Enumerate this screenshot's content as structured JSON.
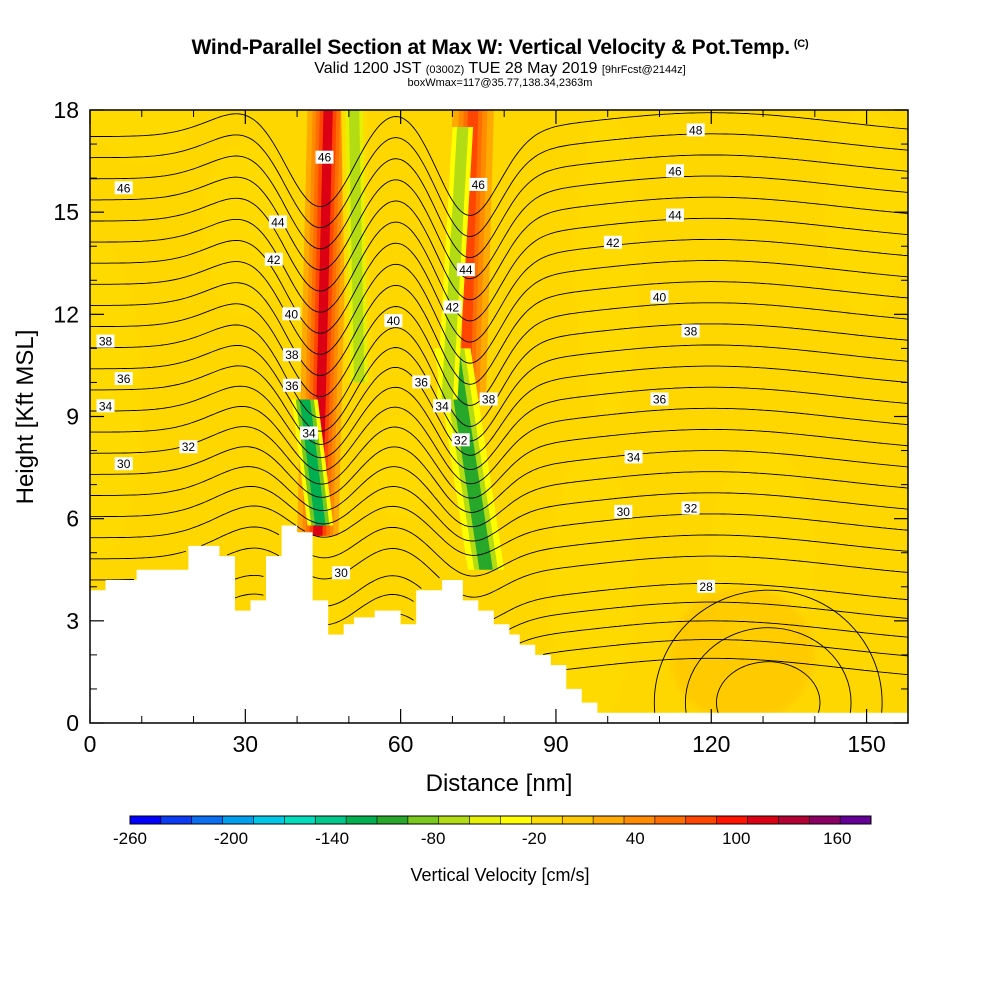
{
  "chart_data": {
    "type": "heatmap",
    "title": "Wind-Parallel Section at Max W: Vertical Velocity & Pot.Temp.",
    "title_mark": "(C)",
    "subtitle_main_a": "Valid 1200 JST",
    "subtitle_small_a": "(0300Z)",
    "subtitle_main_b": "TUE 28 May 2019",
    "subtitle_small_b": "[9hrFcst@2144z]",
    "subtitle2": "boxWmax=117@35.77,138.34,2363m",
    "xlabel": "Distance [nm]",
    "ylabel": "Height [Kft MSL]",
    "xlim": [
      0,
      158
    ],
    "ylim": [
      0,
      18
    ],
    "x_ticks": [
      0,
      30,
      60,
      90,
      120,
      150
    ],
    "y_ticks": [
      0,
      3,
      6,
      9,
      12,
      15,
      18
    ],
    "colorbar": {
      "title": "Vertical Velocity [cm/s]",
      "min": -260,
      "max": 180,
      "step": 20,
      "tick_labels": [
        -260,
        -200,
        -140,
        -80,
        -20,
        40,
        100,
        160
      ],
      "colors": [
        "#0000ff",
        "#0a3cf5",
        "#0a6ef0",
        "#00a0f0",
        "#00c8e6",
        "#00dcbe",
        "#00c88c",
        "#00b050",
        "#28a82a",
        "#78c81e",
        "#b4dc14",
        "#e6f000",
        "#ffff00",
        "#ffdc00",
        "#ffc800",
        "#ffaa00",
        "#ff8c00",
        "#ff6e00",
        "#ff4600",
        "#ff1400",
        "#dc0014",
        "#b40032",
        "#8c0064",
        "#640096"
      ]
    },
    "updraft_cores": [
      {
        "x": 47,
        "base_kft": 5.5,
        "top_kft": 18,
        "max_w": 120
      },
      {
        "x": 74,
        "base_kft": 4.5,
        "top_kft": 18,
        "max_w": 100
      }
    ],
    "downdraft_bands": [
      {
        "x": 50,
        "base_kft": 5.5,
        "top_kft": 18,
        "min_w": -60
      },
      {
        "x": 75,
        "base_kft": 4.5,
        "top_kft": 11,
        "min_w": -100
      }
    ],
    "terrain": [
      [
        0,
        3.9
      ],
      [
        3,
        4.2
      ],
      [
        9,
        4.5
      ],
      [
        19,
        5.2
      ],
      [
        25,
        4.9
      ],
      [
        28,
        3.3
      ],
      [
        31,
        3.6
      ],
      [
        34,
        4.9
      ],
      [
        37,
        5.8
      ],
      [
        40,
        5.6
      ],
      [
        43,
        3.6
      ],
      [
        46,
        2.6
      ],
      [
        49,
        2.9
      ],
      [
        51,
        3.1
      ],
      [
        55,
        3.3
      ],
      [
        60,
        2.9
      ],
      [
        63,
        3.9
      ],
      [
        68,
        4.2
      ],
      [
        72,
        3.6
      ],
      [
        75,
        3.3
      ],
      [
        78,
        2.9
      ],
      [
        81,
        2.6
      ],
      [
        83,
        2.3
      ],
      [
        86,
        2.0
      ],
      [
        89,
        1.7
      ],
      [
        92,
        1.0
      ],
      [
        95,
        0.6
      ],
      [
        98,
        0.3
      ],
      [
        158,
        0.3
      ]
    ],
    "contour_labels": [
      {
        "text": "48",
        "x": 117,
        "y": 17.4
      },
      {
        "text": "46",
        "x": 6.5,
        "y": 15.7
      },
      {
        "text": "46",
        "x": 45.3,
        "y": 16.6
      },
      {
        "text": "46",
        "x": 75,
        "y": 15.8
      },
      {
        "text": "46",
        "x": 113,
        "y": 16.2
      },
      {
        "text": "44",
        "x": 36.3,
        "y": 14.7
      },
      {
        "text": "44",
        "x": 72.6,
        "y": 13.3
      },
      {
        "text": "44",
        "x": 113,
        "y": 14.9
      },
      {
        "text": "42",
        "x": 35.5,
        "y": 13.6
      },
      {
        "text": "42",
        "x": 70,
        "y": 12.2
      },
      {
        "text": "42",
        "x": 101,
        "y": 14.1
      },
      {
        "text": "40",
        "x": 38.9,
        "y": 12.0
      },
      {
        "text": "40",
        "x": 58.6,
        "y": 11.8
      },
      {
        "text": "40",
        "x": 110,
        "y": 12.5
      },
      {
        "text": "38",
        "x": 3,
        "y": 11.2
      },
      {
        "text": "38",
        "x": 39,
        "y": 10.8
      },
      {
        "text": "38",
        "x": 77,
        "y": 9.5
      },
      {
        "text": "38",
        "x": 116,
        "y": 11.5
      },
      {
        "text": "36",
        "x": 6.5,
        "y": 10.1
      },
      {
        "text": "36",
        "x": 39,
        "y": 9.9
      },
      {
        "text": "36",
        "x": 64,
        "y": 10.0
      },
      {
        "text": "36",
        "x": 110,
        "y": 9.5
      },
      {
        "text": "34",
        "x": 3,
        "y": 9.3
      },
      {
        "text": "34",
        "x": 42.3,
        "y": 8.5
      },
      {
        "text": "34",
        "x": 68,
        "y": 9.3
      },
      {
        "text": "34",
        "x": 105,
        "y": 7.8
      },
      {
        "text": "32",
        "x": 19,
        "y": 8.1
      },
      {
        "text": "32",
        "x": 71.6,
        "y": 8.3
      },
      {
        "text": "32",
        "x": 116,
        "y": 6.3
      },
      {
        "text": "30",
        "x": 6.5,
        "y": 7.6
      },
      {
        "text": "30",
        "x": 48.5,
        "y": 4.4
      },
      {
        "text": "30",
        "x": 103,
        "y": 6.2
      },
      {
        "text": "28",
        "x": 119,
        "y": 4.0
      }
    ]
  }
}
